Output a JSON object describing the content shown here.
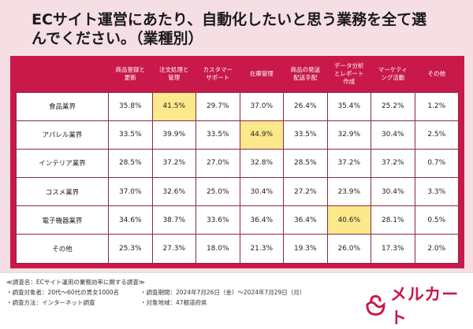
{
  "title": "ECサイト運営にあたり、自動化したいと思う業務を全て選んでください。（業種別）",
  "headers": [
    "商品登録と\n更新",
    "注文処理と\n管理",
    "カスタマー\nサポート",
    "在庫管理",
    "商品の発送\n配送手配",
    "データ分析\nとレポート\n作成",
    "マーケティ\nング活動",
    "その他"
  ],
  "rows": [
    {
      "label": "食品業界",
      "values": [
        "35.8%",
        "41.5%",
        "29.7%",
        "37.0%",
        "26.4%",
        "35.4%",
        "25.2%",
        "1.2%"
      ],
      "highlight": 1
    },
    {
      "label": "アパレル業界",
      "values": [
        "33.5%",
        "39.9%",
        "33.5%",
        "44.9%",
        "33.5%",
        "32.9%",
        "30.4%",
        "2.5%"
      ],
      "highlight": 3
    },
    {
      "label": "インテリア業界",
      "values": [
        "28.5%",
        "37.2%",
        "27.0%",
        "32.8%",
        "28.5%",
        "37.2%",
        "37.2%",
        "0.7%"
      ],
      "highlight": null
    },
    {
      "label": "コスメ業界",
      "values": [
        "37.0%",
        "32.6%",
        "25.0%",
        "30.4%",
        "27.2%",
        "23.9%",
        "30.4%",
        "3.3%"
      ],
      "highlight": null
    },
    {
      "label": "電子機器業界",
      "values": [
        "34.6%",
        "38.7%",
        "33.6%",
        "36.4%",
        "36.4%",
        "40.6%",
        "28.1%",
        "0.5%"
      ],
      "highlight": 5
    },
    {
      "label": "その他",
      "values": [
        "25.3%",
        "27.3%",
        "18.0%",
        "21.3%",
        "19.3%",
        "26.0%",
        "17.3%",
        "2.0%"
      ],
      "highlight": null
    }
  ],
  "footer": {
    "survey_name": "≪調査名：ECサイト運用の業務効率に関する調査≫",
    "subjects": "・調査対象者：20代〜60代の男女1000名",
    "method": "・調査方法：インターネット調査",
    "period": "・調査期間：2024年7月26日（金）〜2024年7月29日（月）",
    "region": "・対象地域：47都道府県"
  },
  "logo": {
    "text": "メルカート",
    "icon": "merkart-logo-icon"
  },
  "colors": {
    "accent": "#c8194a",
    "highlight": "#fbe98c",
    "background": "#f6dfe4"
  }
}
